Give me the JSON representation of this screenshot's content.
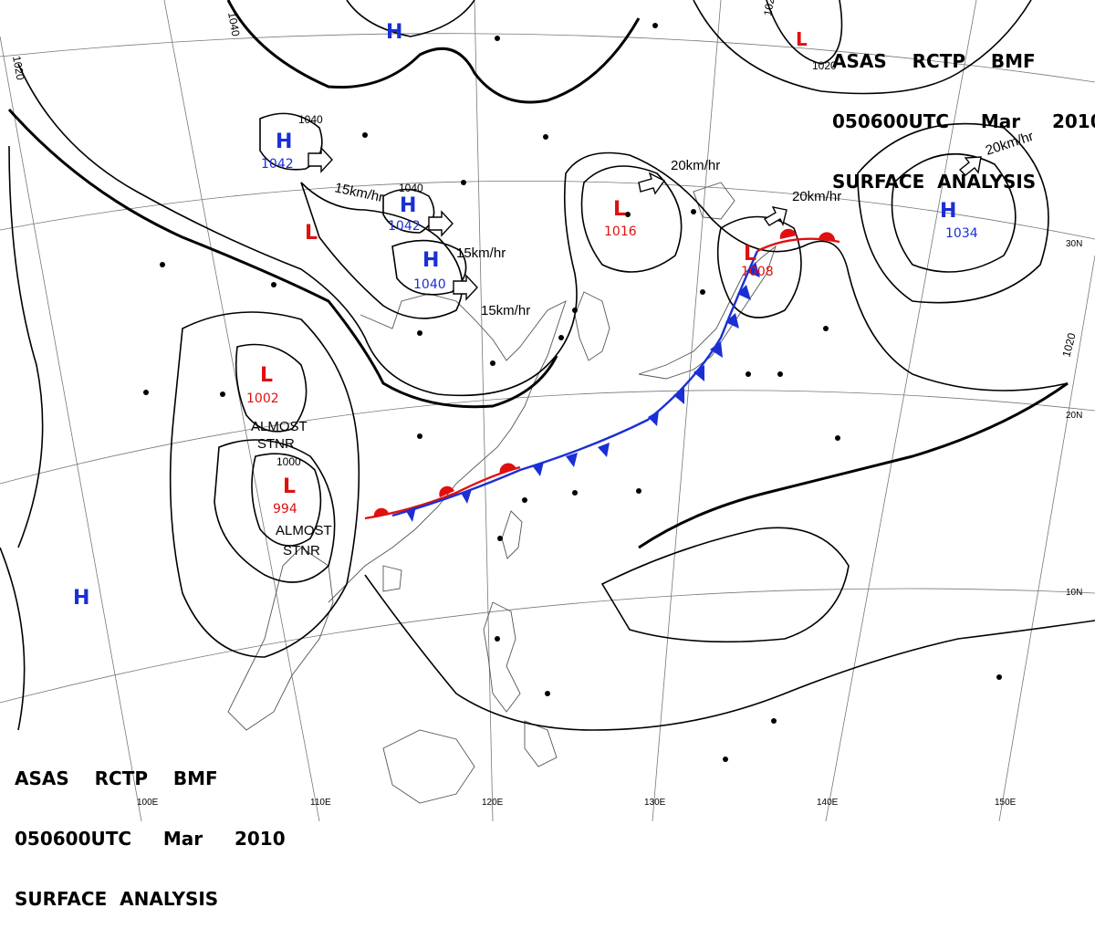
{
  "title": {
    "agency_line": "ASAS    RCTP    BMF",
    "time_line": "050600UTC     Mar     2010",
    "product_line": "SURFACE  ANALYSIS"
  },
  "lat_labels": [
    "30N",
    "20N",
    "10N"
  ],
  "lon_labels": [
    "100E",
    "110E",
    "120E",
    "130E",
    "140E",
    "150E"
  ],
  "pressure_centers": [
    {
      "id": "h1",
      "type": "H",
      "value": ""
    },
    {
      "id": "h2",
      "type": "H",
      "value": "1042"
    },
    {
      "id": "h3",
      "type": "H",
      "value": "1042"
    },
    {
      "id": "h4",
      "type": "H",
      "value": "1040"
    },
    {
      "id": "h5",
      "type": "H",
      "value": "1034"
    },
    {
      "id": "h6",
      "type": "H",
      "value": ""
    },
    {
      "id": "l1",
      "type": "L",
      "value": ""
    },
    {
      "id": "l2",
      "type": "L",
      "value": "1002"
    },
    {
      "id": "l3",
      "type": "L",
      "value": "994"
    },
    {
      "id": "l4",
      "type": "L",
      "value": "1016"
    },
    {
      "id": "l5",
      "type": "L",
      "value": "1008"
    },
    {
      "id": "l6",
      "type": "L",
      "value": ""
    }
  ],
  "isobar_labels": [
    "1040",
    "1020",
    "1040",
    "1040",
    "1020",
    "1000",
    "1020",
    "1020"
  ],
  "motion_labels": [
    "15km/hr",
    "15km/hr",
    "15km/hr",
    "20km/hr",
    "20km/hr",
    "20km/hr"
  ],
  "stationary_labels": [
    {
      "line1": "ALMOST",
      "line2": "STNR"
    },
    {
      "line1": "ALMOST",
      "line2": "STNR"
    }
  ],
  "colors": {
    "high": "#1a2fd6",
    "low": "#e01010",
    "cold_front": "#1a2fd6",
    "warm_front": "#e01010",
    "isobar": "#000000",
    "coast": "#555555",
    "grid": "#777777"
  }
}
